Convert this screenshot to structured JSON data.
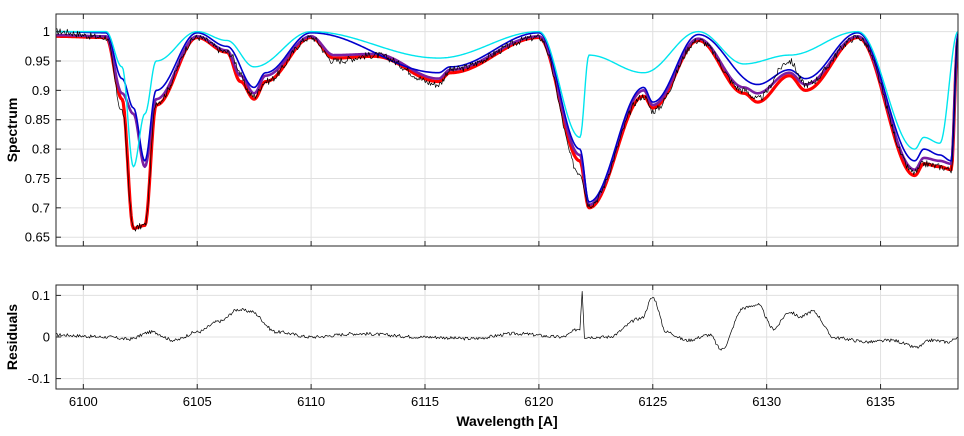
{
  "chart_data": [
    {
      "type": "line",
      "panel": "spectrum",
      "title": "",
      "xlabel": "",
      "ylabel": "Spectrum",
      "xlim": [
        6098.8,
        6138.4
      ],
      "ylim": [
        0.635,
        1.03
      ],
      "grid": true,
      "x_ticks": [
        6100,
        6105,
        6110,
        6115,
        6120,
        6125,
        6130,
        6135
      ],
      "y_ticks": [
        0.65,
        0.7,
        0.75,
        0.8,
        0.85,
        0.9,
        0.95,
        1
      ],
      "y_tick_labels": [
        "0.65",
        "0.7",
        "0.75",
        "0.8",
        "0.85",
        "0.9",
        "0.95",
        "1"
      ],
      "line_centers": [
        6101.7,
        6102.2,
        6102.7,
        6103.2,
        6106.3,
        6106.9,
        6107.5,
        6108.0,
        6111.0,
        6112.8,
        6115.6,
        6116.1,
        6117.8,
        6121.8,
        6122.2,
        6124.6,
        6125.0,
        6126.3,
        6127.6,
        6128.0,
        6129.0,
        6129.6,
        6130.9,
        6131.3,
        6131.7,
        6134.0,
        6136.5,
        6136.9,
        6137.2,
        6137.6,
        6138.1
      ],
      "series": [
        {
          "role": "observed",
          "color": "#000000",
          "stroke_width": 0.7,
          "x": [
            6098.8,
            6101.0,
            6101.7,
            6102.2,
            6102.7,
            6103.2,
            6105.0,
            6106.3,
            6107.5,
            6108.0,
            6110.0,
            6111.0,
            6112.8,
            6115.6,
            6116.1,
            6120.0,
            6121.8,
            6122.2,
            6124.6,
            6125.0,
            6127.0,
            6129.0,
            6129.6,
            6131.0,
            6131.7,
            6134.0,
            6136.5,
            6136.9,
            6137.6,
            6138.1,
            6138.4
          ],
          "y": [
            1.0,
            0.99,
            0.865,
            0.665,
            0.67,
            0.88,
            0.99,
            0.965,
            0.89,
            0.915,
            0.99,
            0.95,
            0.96,
            0.91,
            0.935,
            0.99,
            0.76,
            0.705,
            0.89,
            0.865,
            0.985,
            0.9,
            0.885,
            0.95,
            0.91,
            0.99,
            0.76,
            0.775,
            0.77,
            0.765,
            0.99
          ]
        },
        {
          "role": "model",
          "color": "#ff0000",
          "stroke_width": 3.2,
          "x": [
            6098.8,
            6101.0,
            6101.7,
            6102.2,
            6102.7,
            6103.2,
            6105.0,
            6106.3,
            6106.9,
            6107.5,
            6108.0,
            6110.0,
            6111.0,
            6112.8,
            6115.6,
            6116.1,
            6120.0,
            6121.8,
            6122.2,
            6124.6,
            6125.0,
            6127.0,
            6129.0,
            6129.6,
            6131.0,
            6131.7,
            6134.0,
            6136.5,
            6136.9,
            6137.6,
            6138.1,
            6138.4
          ],
          "y": [
            0.992,
            0.99,
            0.885,
            0.665,
            0.67,
            0.875,
            0.99,
            0.965,
            0.915,
            0.885,
            0.915,
            0.99,
            0.955,
            0.958,
            0.915,
            0.93,
            0.99,
            0.78,
            0.7,
            0.89,
            0.87,
            0.985,
            0.895,
            0.88,
            0.925,
            0.9,
            0.99,
            0.755,
            0.775,
            0.77,
            0.765,
            0.99
          ]
        },
        {
          "role": "model",
          "color": "#7b1fa2",
          "stroke_width": 2.6,
          "x": [
            6098.8,
            6101.0,
            6101.7,
            6102.2,
            6102.7,
            6103.2,
            6105.0,
            6106.3,
            6106.9,
            6107.5,
            6108.0,
            6110.0,
            6111.0,
            6112.8,
            6115.6,
            6116.1,
            6120.0,
            6121.8,
            6122.2,
            6124.6,
            6125.0,
            6127.0,
            6129.0,
            6129.6,
            6131.0,
            6131.7,
            6134.0,
            6136.5,
            6136.9,
            6137.6,
            6138.1,
            6138.4
          ],
          "y": [
            0.994,
            0.992,
            0.895,
            0.86,
            0.77,
            0.885,
            0.992,
            0.968,
            0.925,
            0.895,
            0.925,
            0.992,
            0.96,
            0.962,
            0.92,
            0.935,
            0.992,
            0.79,
            0.705,
            0.9,
            0.875,
            0.988,
            0.905,
            0.895,
            0.93,
            0.91,
            0.992,
            0.765,
            0.785,
            0.78,
            0.775,
            0.992
          ]
        },
        {
          "role": "model",
          "color": "#0000cd",
          "stroke_width": 1.6,
          "x": [
            6098.8,
            6101.0,
            6101.7,
            6102.2,
            6102.7,
            6103.2,
            6105.0,
            6106.3,
            6107.5,
            6108.0,
            6110.0,
            6115.6,
            6116.1,
            6120.0,
            6121.8,
            6122.2,
            6124.6,
            6125.0,
            6127.0,
            6129.6,
            6131.0,
            6131.7,
            6134.0,
            6136.5,
            6136.9,
            6137.6,
            6138.1,
            6138.4
          ],
          "y": [
            1.0,
            0.998,
            0.92,
            0.87,
            0.78,
            0.9,
            0.998,
            0.975,
            0.905,
            0.93,
            0.998,
            0.93,
            0.94,
            0.998,
            0.8,
            0.71,
            0.905,
            0.88,
            0.995,
            0.91,
            0.935,
            0.92,
            0.998,
            0.78,
            0.8,
            0.79,
            0.78,
            0.998
          ]
        },
        {
          "role": "model",
          "color": "#00e5ee",
          "stroke_width": 1.4,
          "x": [
            6098.8,
            6101.0,
            6101.7,
            6102.2,
            6102.7,
            6103.2,
            6105.0,
            6106.3,
            6107.5,
            6110.0,
            6115.6,
            6120.0,
            6121.8,
            6122.2,
            6124.6,
            6127.0,
            6129.0,
            6131.0,
            6134.0,
            6136.5,
            6136.9,
            6137.6,
            6138.4
          ],
          "y": [
            1.0,
            1.0,
            0.94,
            0.77,
            0.86,
            0.95,
            1.0,
            0.985,
            0.94,
            1.0,
            0.955,
            1.0,
            0.82,
            0.96,
            0.93,
            1.0,
            0.945,
            0.96,
            1.0,
            0.8,
            0.82,
            0.81,
            1.0
          ]
        }
      ]
    },
    {
      "type": "line",
      "panel": "residuals",
      "title": "",
      "xlabel": "Wavelength [A]",
      "ylabel": "Residuals",
      "xlim": [
        6098.8,
        6138.4
      ],
      "ylim": [
        -0.125,
        0.125
      ],
      "grid": true,
      "x_ticks": [
        6100,
        6105,
        6110,
        6115,
        6120,
        6125,
        6130,
        6135
      ],
      "x_tick_labels": [
        "6100",
        "6105",
        "6110",
        "6115",
        "6120",
        "6125",
        "6130",
        "6135"
      ],
      "y_ticks": [
        -0.1,
        0,
        0.1
      ],
      "y_tick_labels": [
        "-0.1",
        "0",
        "0.1"
      ],
      "series": [
        {
          "role": "residual",
          "color": "#000000",
          "stroke_width": 0.7,
          "x": [
            6098.8,
            6101.0,
            6102.0,
            6103.0,
            6104.0,
            6105.0,
            6106.0,
            6106.8,
            6107.3,
            6108.5,
            6110.0,
            6112.0,
            6115.0,
            6117.0,
            6119.0,
            6121.0,
            6121.8,
            6121.9,
            6122.0,
            6123.0,
            6124.5,
            6125.0,
            6125.6,
            6126.5,
            6127.5,
            6128.0,
            6129.0,
            6129.6,
            6130.3,
            6131.0,
            6131.5,
            6132.0,
            6133.0,
            6134.5,
            6135.5,
            6136.6,
            6137.2,
            6138.0,
            6138.4
          ],
          "y": [
            0.005,
            0.0,
            -0.005,
            0.012,
            -0.008,
            0.012,
            0.038,
            0.066,
            0.062,
            0.012,
            0.0,
            0.008,
            0.0,
            -0.004,
            0.008,
            0.0,
            0.02,
            0.112,
            0.0,
            0.0,
            0.045,
            0.095,
            0.012,
            -0.008,
            0.005,
            -0.03,
            0.07,
            0.078,
            0.02,
            0.06,
            0.048,
            0.062,
            -0.002,
            -0.012,
            -0.008,
            -0.025,
            -0.008,
            -0.012,
            0.0
          ]
        }
      ]
    }
  ]
}
